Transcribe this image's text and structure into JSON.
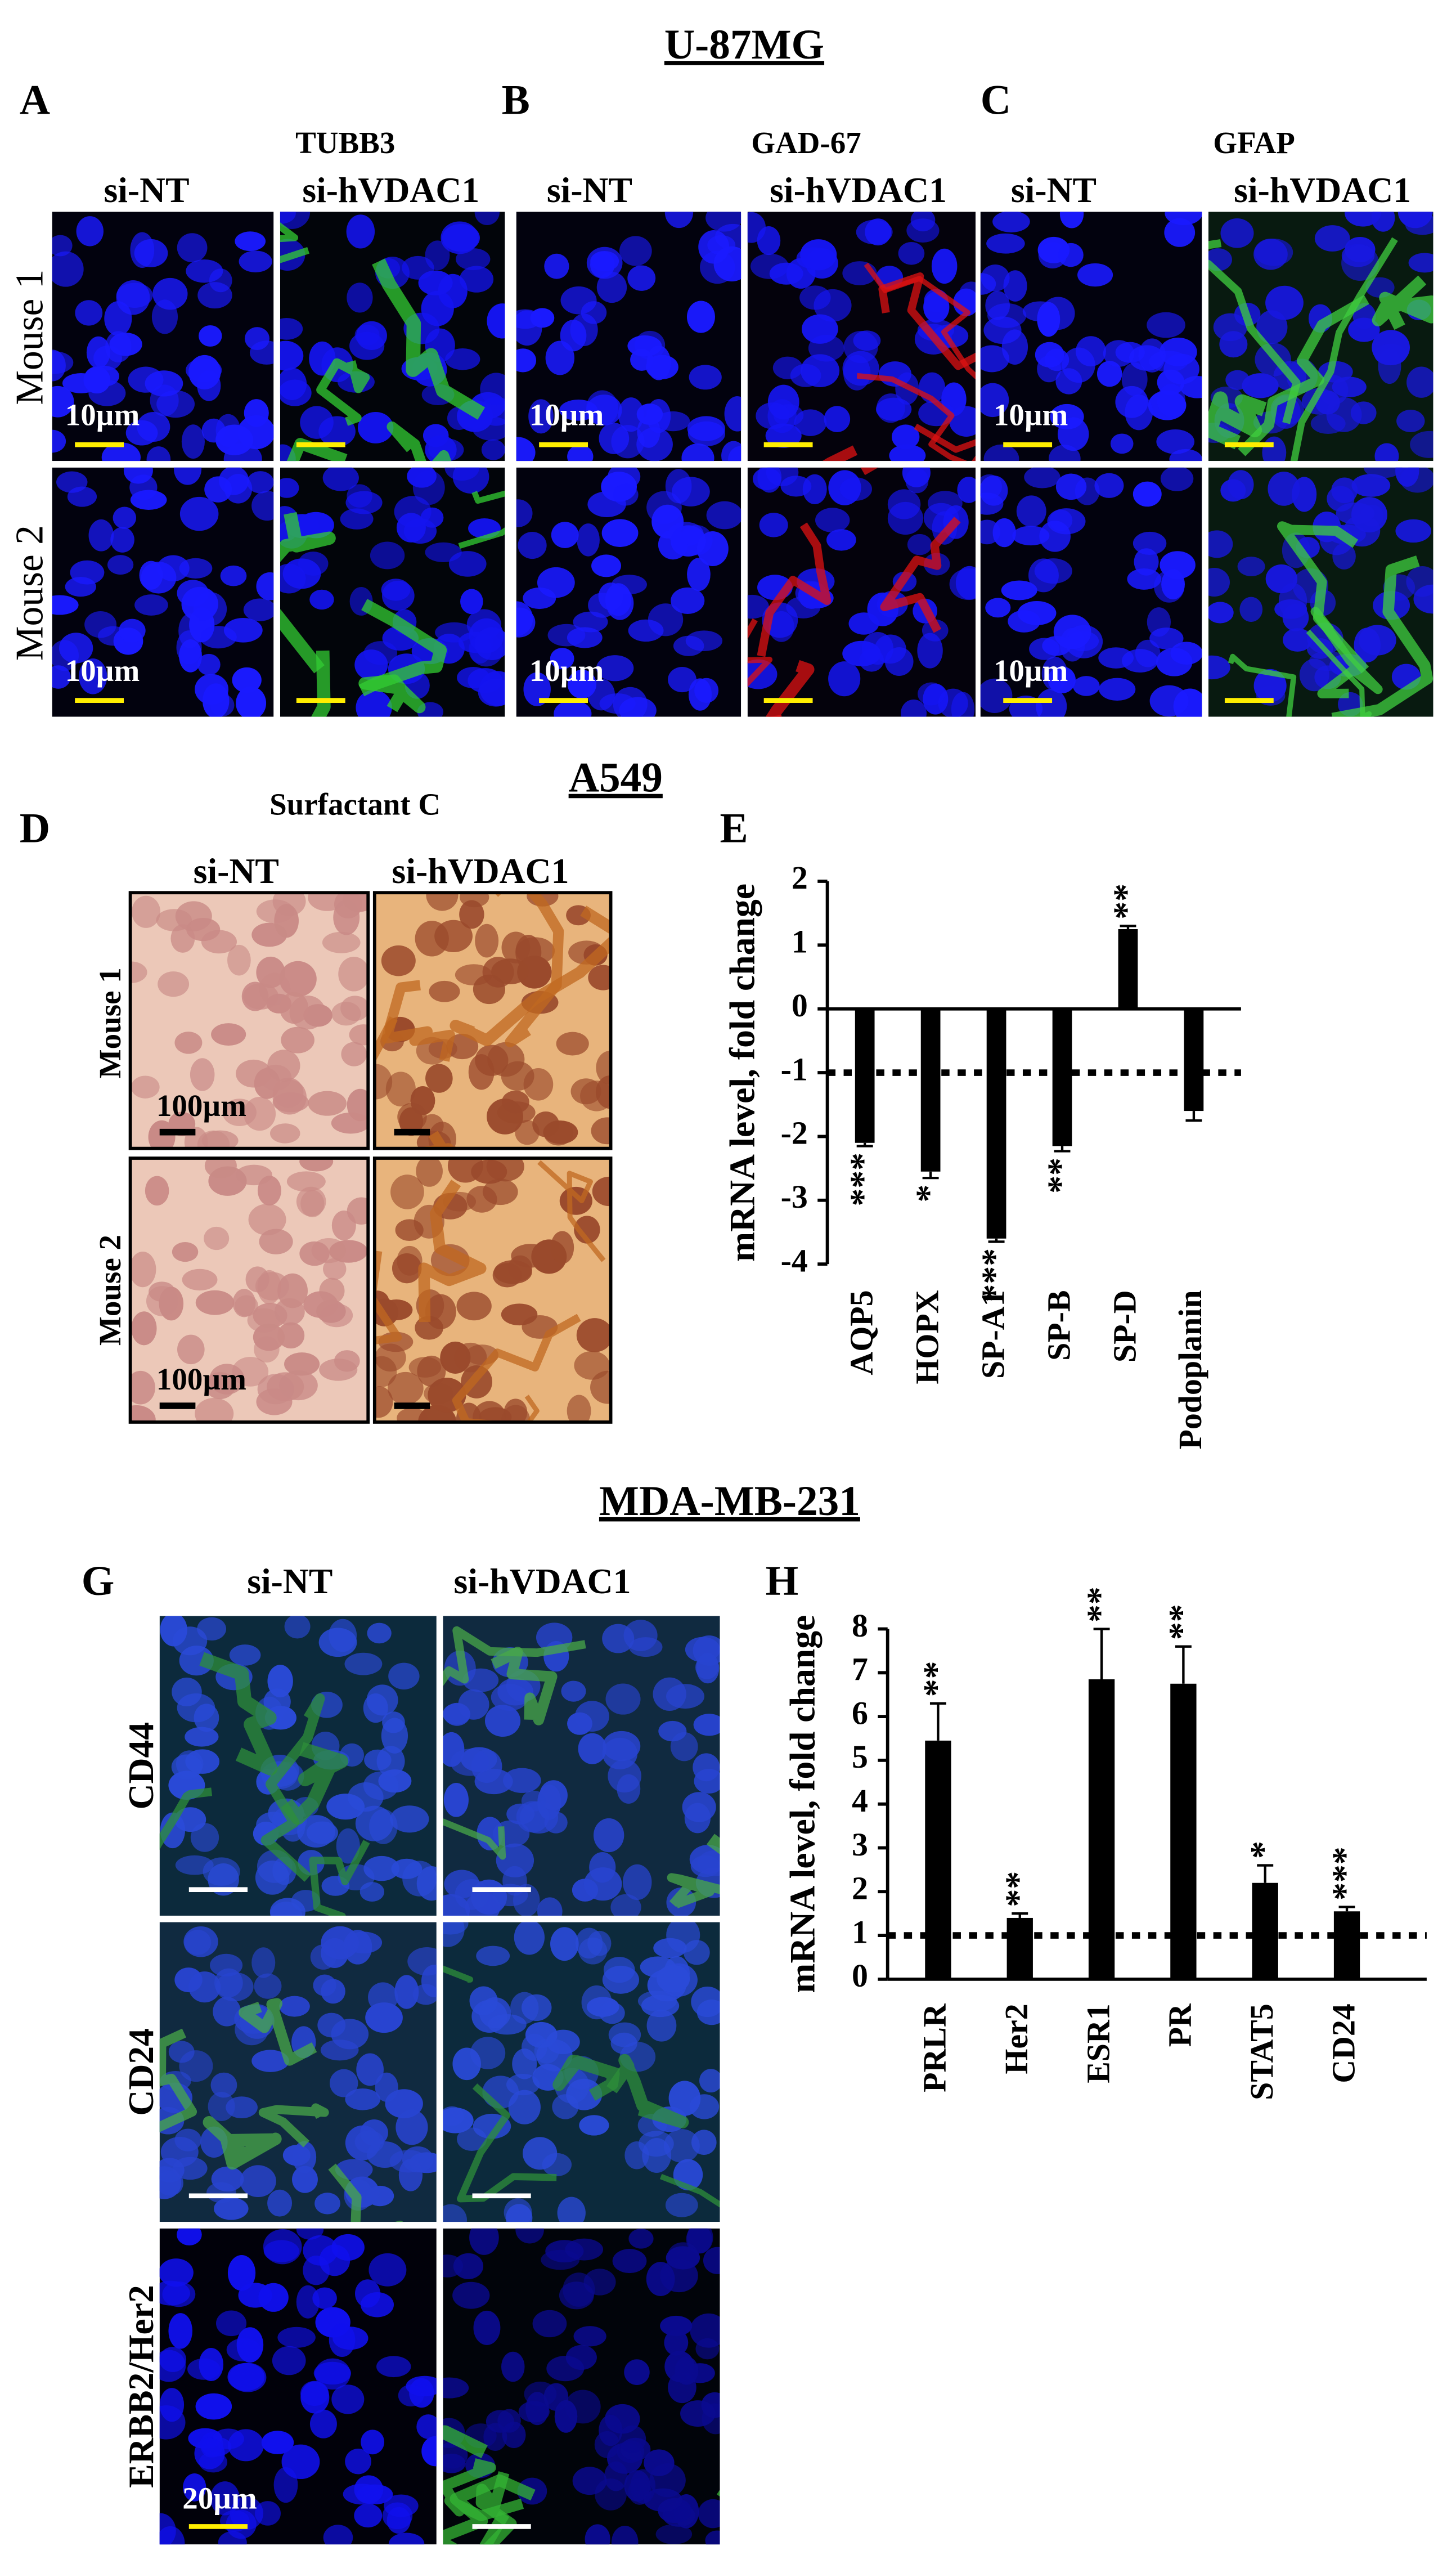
{
  "figure": {
    "sections": [
      "U-87MG",
      "A549",
      "MDA-MB-231"
    ],
    "panels": [
      "A",
      "B",
      "C",
      "D",
      "E",
      "G",
      "H"
    ],
    "markers": [
      "TUBB3",
      "GAD-67",
      "GFAP",
      "Surfactant C"
    ],
    "col_labels": [
      "si-NT",
      "si-hVDAC1"
    ],
    "row_labels": [
      "Mouse 1",
      "Mouse 2"
    ],
    "g_rows": [
      "CD44",
      "CD24",
      "ERBB2/Her2"
    ],
    "scale_labels": [
      "10µm",
      "100µm",
      "20µm"
    ]
  },
  "chart_data": [
    {
      "type": "bar",
      "ylabel": "mRNA level, fold change",
      "categories": [
        "AQP5",
        "HOPX",
        "SP-A1",
        "SP-B",
        "SP-D",
        "Podoplanin"
      ],
      "values": [
        -2.1,
        -2.55,
        -3.6,
        -2.15,
        1.25,
        -1.6
      ],
      "errors": [
        0.05,
        0.1,
        0.05,
        0.08,
        0.05,
        0.15
      ],
      "annotations": [
        "***",
        "*",
        "***",
        "**",
        "**",
        null
      ],
      "reference_line": -1,
      "color": "#000000",
      "ylim": [
        -4,
        2
      ],
      "yticks": [
        -4,
        -3,
        -2,
        -1,
        0,
        1,
        2
      ]
    },
    {
      "type": "bar",
      "ylabel": "mRNA level, fold change",
      "categories": [
        "PRLR",
        "Her2",
        "ESR1",
        "PR",
        "STAT5",
        "CD24"
      ],
      "values": [
        5.45,
        1.4,
        6.85,
        6.75,
        2.2,
        1.55
      ],
      "errors": [
        0.85,
        0.1,
        1.15,
        0.85,
        0.4,
        0.1
      ],
      "annotations": [
        "**",
        "**",
        "**",
        "**",
        "*",
        "***"
      ],
      "reference_line": 1,
      "color": "#000000",
      "ylim": [
        0,
        8
      ],
      "yticks": [
        0,
        1,
        2,
        3,
        4,
        5,
        6,
        7,
        8
      ]
    }
  ]
}
